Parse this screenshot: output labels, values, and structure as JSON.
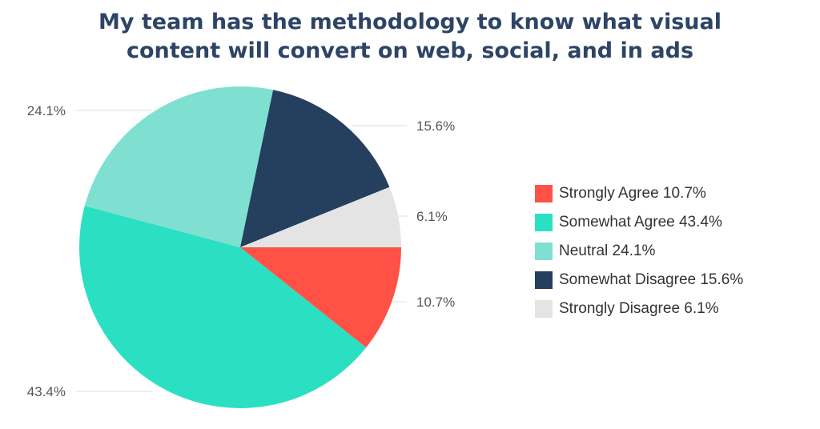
{
  "title_lines": [
    "My team has the methodology to know what visual",
    "content will convert on web, social, and in ads"
  ],
  "chart_data": {
    "type": "pie",
    "title": "My team has the methodology to know what visual content will convert on web, social, and in ads",
    "slices": [
      {
        "label": "Strongly Agree",
        "value": 10.7,
        "display": "10.7%",
        "legend": "Strongly Agree 10.7%",
        "color": "#ff5146"
      },
      {
        "label": "Somewhat Agree",
        "value": 43.4,
        "display": "43.4%",
        "legend": "Somewhat Agree 43.4%",
        "color": "#2be0c2"
      },
      {
        "label": "Neutral",
        "value": 24.1,
        "display": "24.1%",
        "legend": "Neutral 24.1%",
        "color": "#7fe0d2"
      },
      {
        "label": "Somewhat Disagree",
        "value": 15.6,
        "display": "15.6%",
        "legend": "Somewhat Disagree 15.6%",
        "color": "#253f5e"
      },
      {
        "label": "Strongly Disagree",
        "value": 6.1,
        "display": "6.1%",
        "legend": "Strongly Disagree 6.1%",
        "color": "#e4e4e4"
      }
    ],
    "legend_position": "right"
  }
}
